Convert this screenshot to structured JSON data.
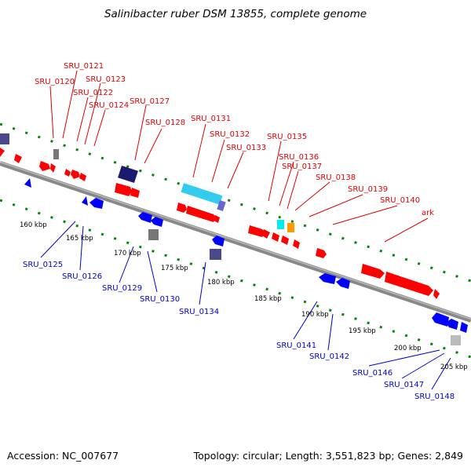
{
  "title": "Salinibacter ruber DSM 13855, complete genome",
  "footer": {
    "accession": "Accession: NC_007677",
    "summary": "Topology: circular; Length: 3,551,823 bp; Genes: 2,849"
  },
  "colors": {
    "forward_gene": "#ff0000",
    "reverse_gene": "#0000ff",
    "dark_gene": "#1a1a6e",
    "grey_gene": "#777777",
    "cyan_gene": "#33ccee",
    "orange_gene": "#ff9900",
    "backbone": "#888888",
    "tick": "#008800"
  },
  "scale_labels": [
    "160 kbp",
    "165 kbp",
    "170 kbp",
    "175 kbp",
    "180 kbp",
    "185 kbp",
    "190 kbp",
    "195 kbp",
    "200 kbp",
    "205 kbp"
  ],
  "forward_labels": [
    "SRU_0120",
    "SRU_0121",
    "SRU_0122",
    "SRU_0123",
    "SRU_0124",
    "SRU_0127",
    "SRU_0128",
    "SRU_0131",
    "SRU_0132",
    "SRU_0133",
    "SRU_0135",
    "SRU_0136",
    "SRU_0137",
    "SRU_0138",
    "SRU_0139",
    "SRU_0140",
    "ark"
  ],
  "reverse_labels": [
    "SRU_0125",
    "SRU_0126",
    "SRU_0129",
    "SRU_0130",
    "SRU_0134",
    "SRU_0141",
    "SRU_0142",
    "SRU_0146",
    "SRU_0147",
    "SRU_0148"
  ]
}
